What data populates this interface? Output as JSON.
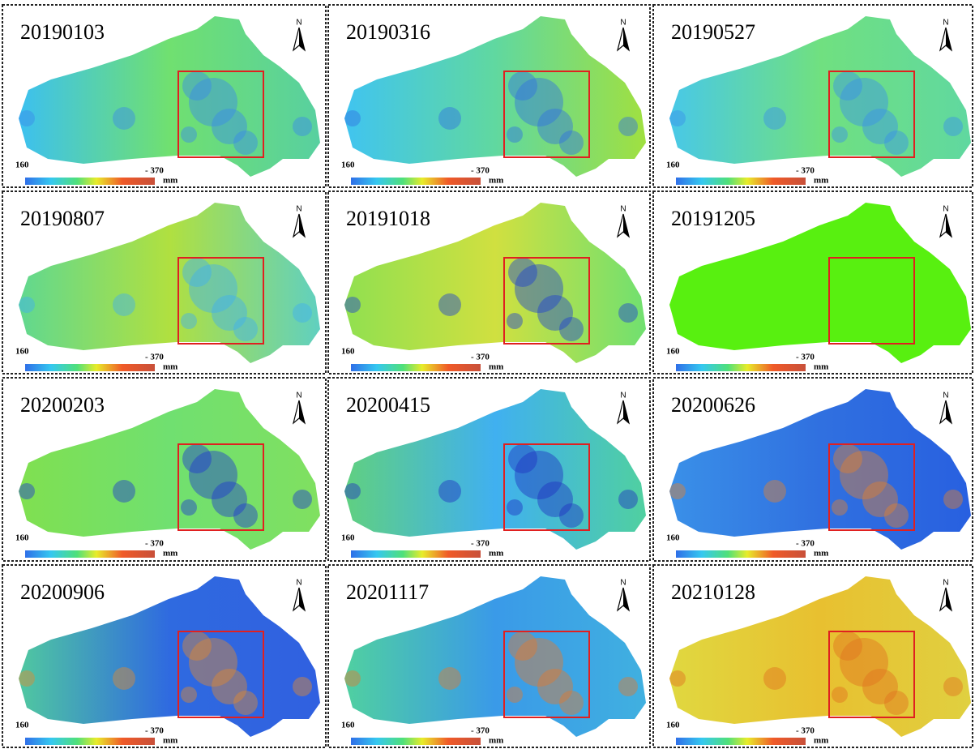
{
  "panels": [
    {
      "date": "20190103"
    },
    {
      "date": "20190316"
    },
    {
      "date": "20190527"
    },
    {
      "date": "20190807"
    },
    {
      "date": "20191018"
    },
    {
      "date": "20191205"
    },
    {
      "date": "20200203"
    },
    {
      "date": "20200415"
    },
    {
      "date": "20200626"
    },
    {
      "date": "20200906"
    },
    {
      "date": "20201117"
    },
    {
      "date": "20210128"
    }
  ],
  "legend": {
    "min_label": "160",
    "max_label": "- 370",
    "unit": "mm"
  },
  "north": "N"
}
